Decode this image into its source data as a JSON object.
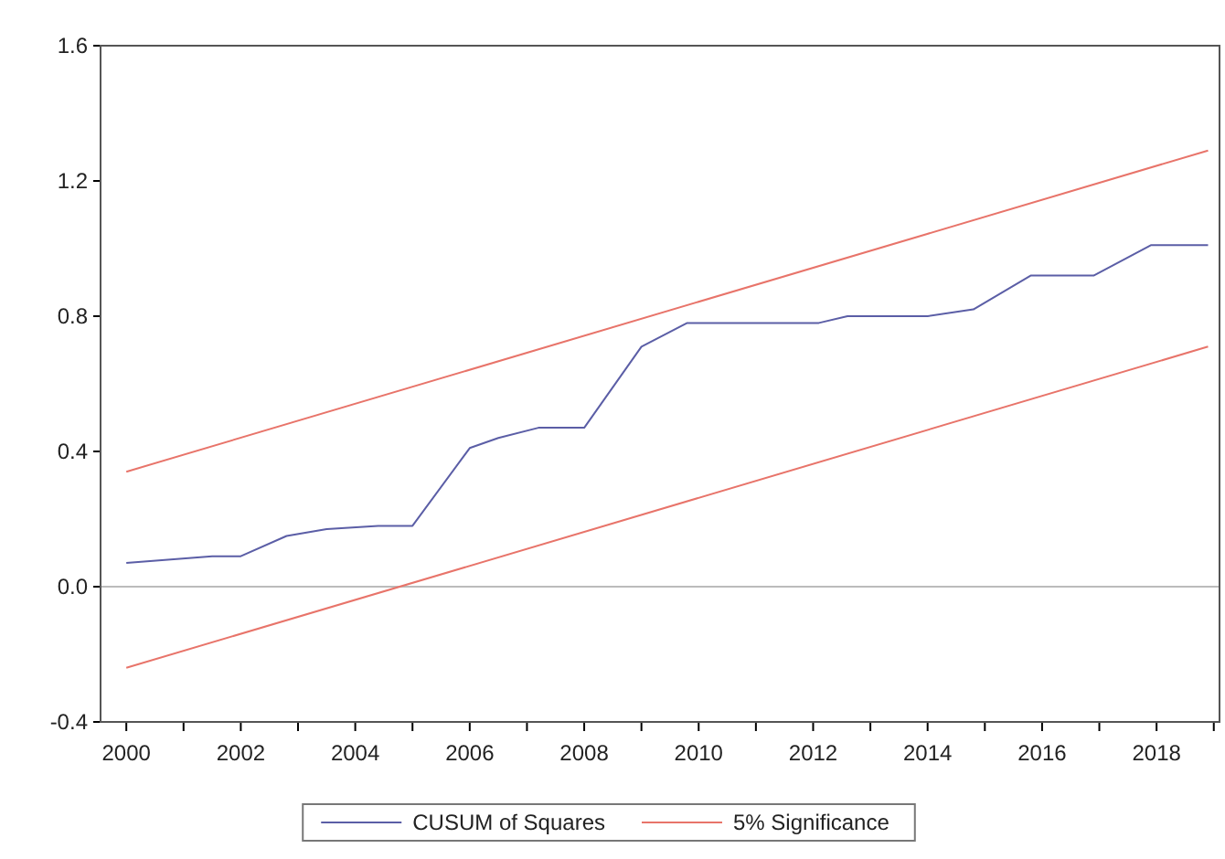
{
  "chart_data": {
    "type": "line",
    "series": [
      {
        "name": "CUSUM of Squares",
        "color": "#5b5ea6",
        "x": [
          2000,
          2001.5,
          2002,
          2002.8,
          2003.5,
          2004.4,
          2005,
          2006,
          2006.5,
          2007.2,
          2008,
          2009,
          2009.8,
          2012.1,
          2012.6,
          2014,
          2014.8,
          2015.8,
          2016.9,
          2017.9,
          2018.9
        ],
        "values": [
          0.07,
          0.09,
          0.09,
          0.15,
          0.17,
          0.18,
          0.18,
          0.41,
          0.44,
          0.47,
          0.47,
          0.71,
          0.78,
          0.78,
          0.8,
          0.8,
          0.82,
          0.92,
          0.92,
          1.01,
          1.01
        ]
      },
      {
        "name": "5% Significance",
        "color": "#e8746a",
        "x": [
          2000,
          2018.9
        ],
        "values": [
          0.34,
          1.29
        ]
      },
      {
        "color": "#e8746a",
        "x": [
          2000,
          2018.9
        ],
        "values": [
          -0.24,
          0.71
        ]
      }
    ],
    "xlim": [
      1999.55,
      2019.1
    ],
    "ylim": [
      -0.4,
      1.6
    ],
    "xticks": [
      2000,
      {
        "value": 2001,
        "label": null
      },
      2002,
      {
        "value": 2003,
        "label": null
      },
      2004,
      {
        "value": 2005,
        "label": null
      },
      2006,
      {
        "value": 2007,
        "label": null
      },
      2008,
      {
        "value": 2009,
        "label": null
      },
      2010,
      {
        "value": 2011,
        "label": null
      },
      2012,
      {
        "value": 2013,
        "label": null
      },
      2014,
      {
        "value": 2015,
        "label": null
      },
      2016,
      {
        "value": 2017,
        "label": null
      },
      2018,
      {
        "value": 2019,
        "label": null
      }
    ],
    "yticks": [
      {
        "value": -0.4,
        "label": "-0.4"
      },
      {
        "value": 0,
        "label": "0.0"
      },
      {
        "value": 0.4,
        "label": "0.4"
      },
      {
        "value": 0.8,
        "label": "0.8"
      },
      {
        "value": 1.2,
        "label": "1.2"
      },
      {
        "value": 1.6,
        "label": "1.6"
      }
    ],
    "ref_lines": [
      {
        "axis": "y",
        "value": 0,
        "color": "#bbbbbb"
      }
    ],
    "grid": false,
    "legend": "bottom",
    "line_style": "solid",
    "marker": "none"
  }
}
